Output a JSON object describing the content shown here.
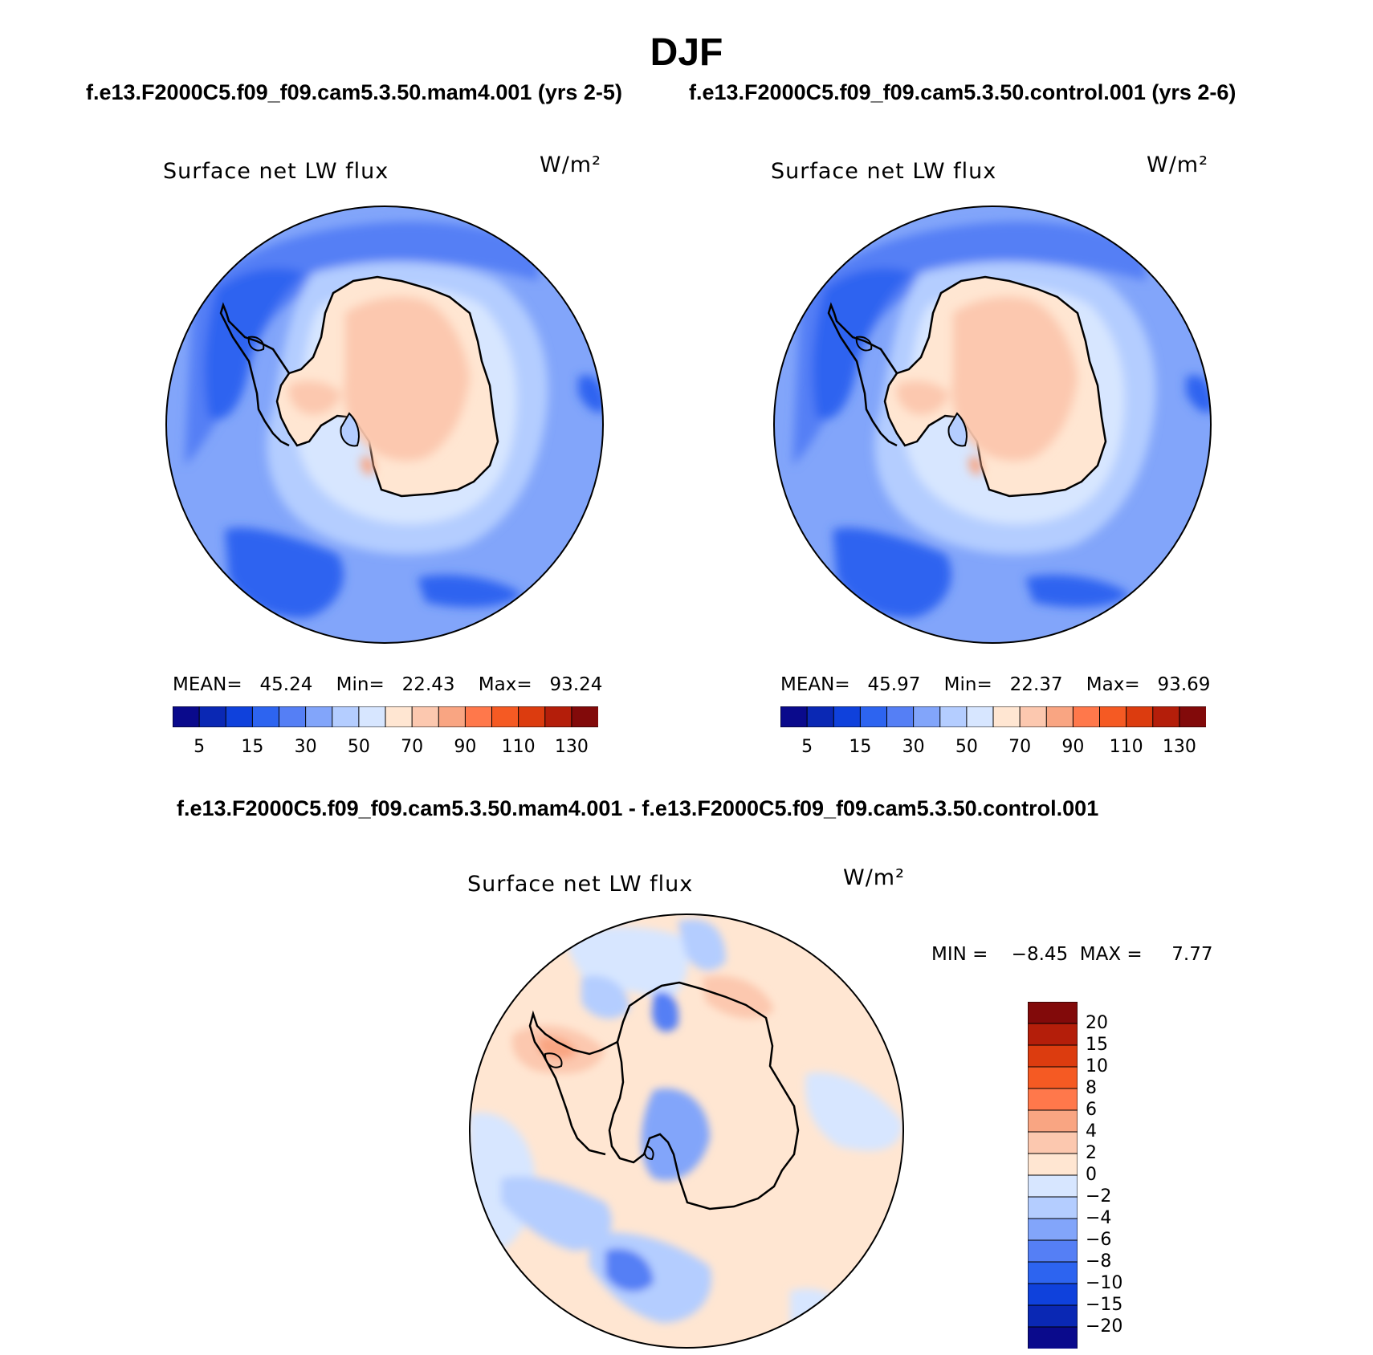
{
  "figure": {
    "title": "DJF",
    "subtitle_left": "f.e13.F2000C5.f09_f09.cam5.3.50.mam4.001 (yrs 2-5)",
    "subtitle_right": "f.e13.F2000C5.f09_f09.cam5.3.50.control.001 (yrs 2-6)",
    "diff_title": "f.e13.F2000C5.f09_f09.cam5.3.50.mam4.001 - f.e13.F2000C5.f09_f09.cam5.3.50.control.001"
  },
  "panels": [
    {
      "variable": "Surface net LW flux",
      "units": "W/m²",
      "stats": {
        "mean_label": "MEAN=",
        "mean": "45.24",
        "min_label": "Min=",
        "min": "22.43",
        "max_label": "Max=",
        "max": "93.24"
      }
    },
    {
      "variable": "Surface net LW flux",
      "units": "W/m²",
      "stats": {
        "mean_label": "MEAN=",
        "mean": "45.97",
        "min_label": "Min=",
        "min": "22.37",
        "max_label": "Max=",
        "max": "93.69"
      }
    }
  ],
  "diff_panel": {
    "variable": "Surface net LW flux",
    "units": "W/m²",
    "stats": {
      "min_label": "MIN =",
      "min": "−8.45",
      "max_label": "MAX =",
      "max": "7.77"
    }
  },
  "colorbar_abs": {
    "colors": [
      "#0a0a8c",
      "#0a28b4",
      "#0f41dc",
      "#2d64f0",
      "#557ff5",
      "#82a5fa",
      "#b4cdff",
      "#d7e6ff",
      "#ffe6d2",
      "#fcc8af",
      "#f9a582",
      "#ff784b",
      "#f55a23",
      "#dc3c0f",
      "#b41e0a",
      "#820a0a"
    ],
    "labels": [
      "5",
      "15",
      "30",
      "50",
      "70",
      "90",
      "110",
      "130"
    ]
  },
  "colorbar_diff": {
    "colors": [
      "#0a0a8c",
      "#0a28b4",
      "#0f41dc",
      "#2d64f0",
      "#557ff5",
      "#82a5fa",
      "#b4cdff",
      "#d7e6ff",
      "#ffe6d2",
      "#fcc8af",
      "#f9a582",
      "#ff784b",
      "#f55a23",
      "#dc3c0f",
      "#b41e0a",
      "#820a0a"
    ],
    "labels": [
      "20",
      "15",
      "10",
      "8",
      "6",
      "4",
      "2",
      "0",
      "−2",
      "−4",
      "−6",
      "−8",
      "−10",
      "−15",
      "−20"
    ]
  }
}
